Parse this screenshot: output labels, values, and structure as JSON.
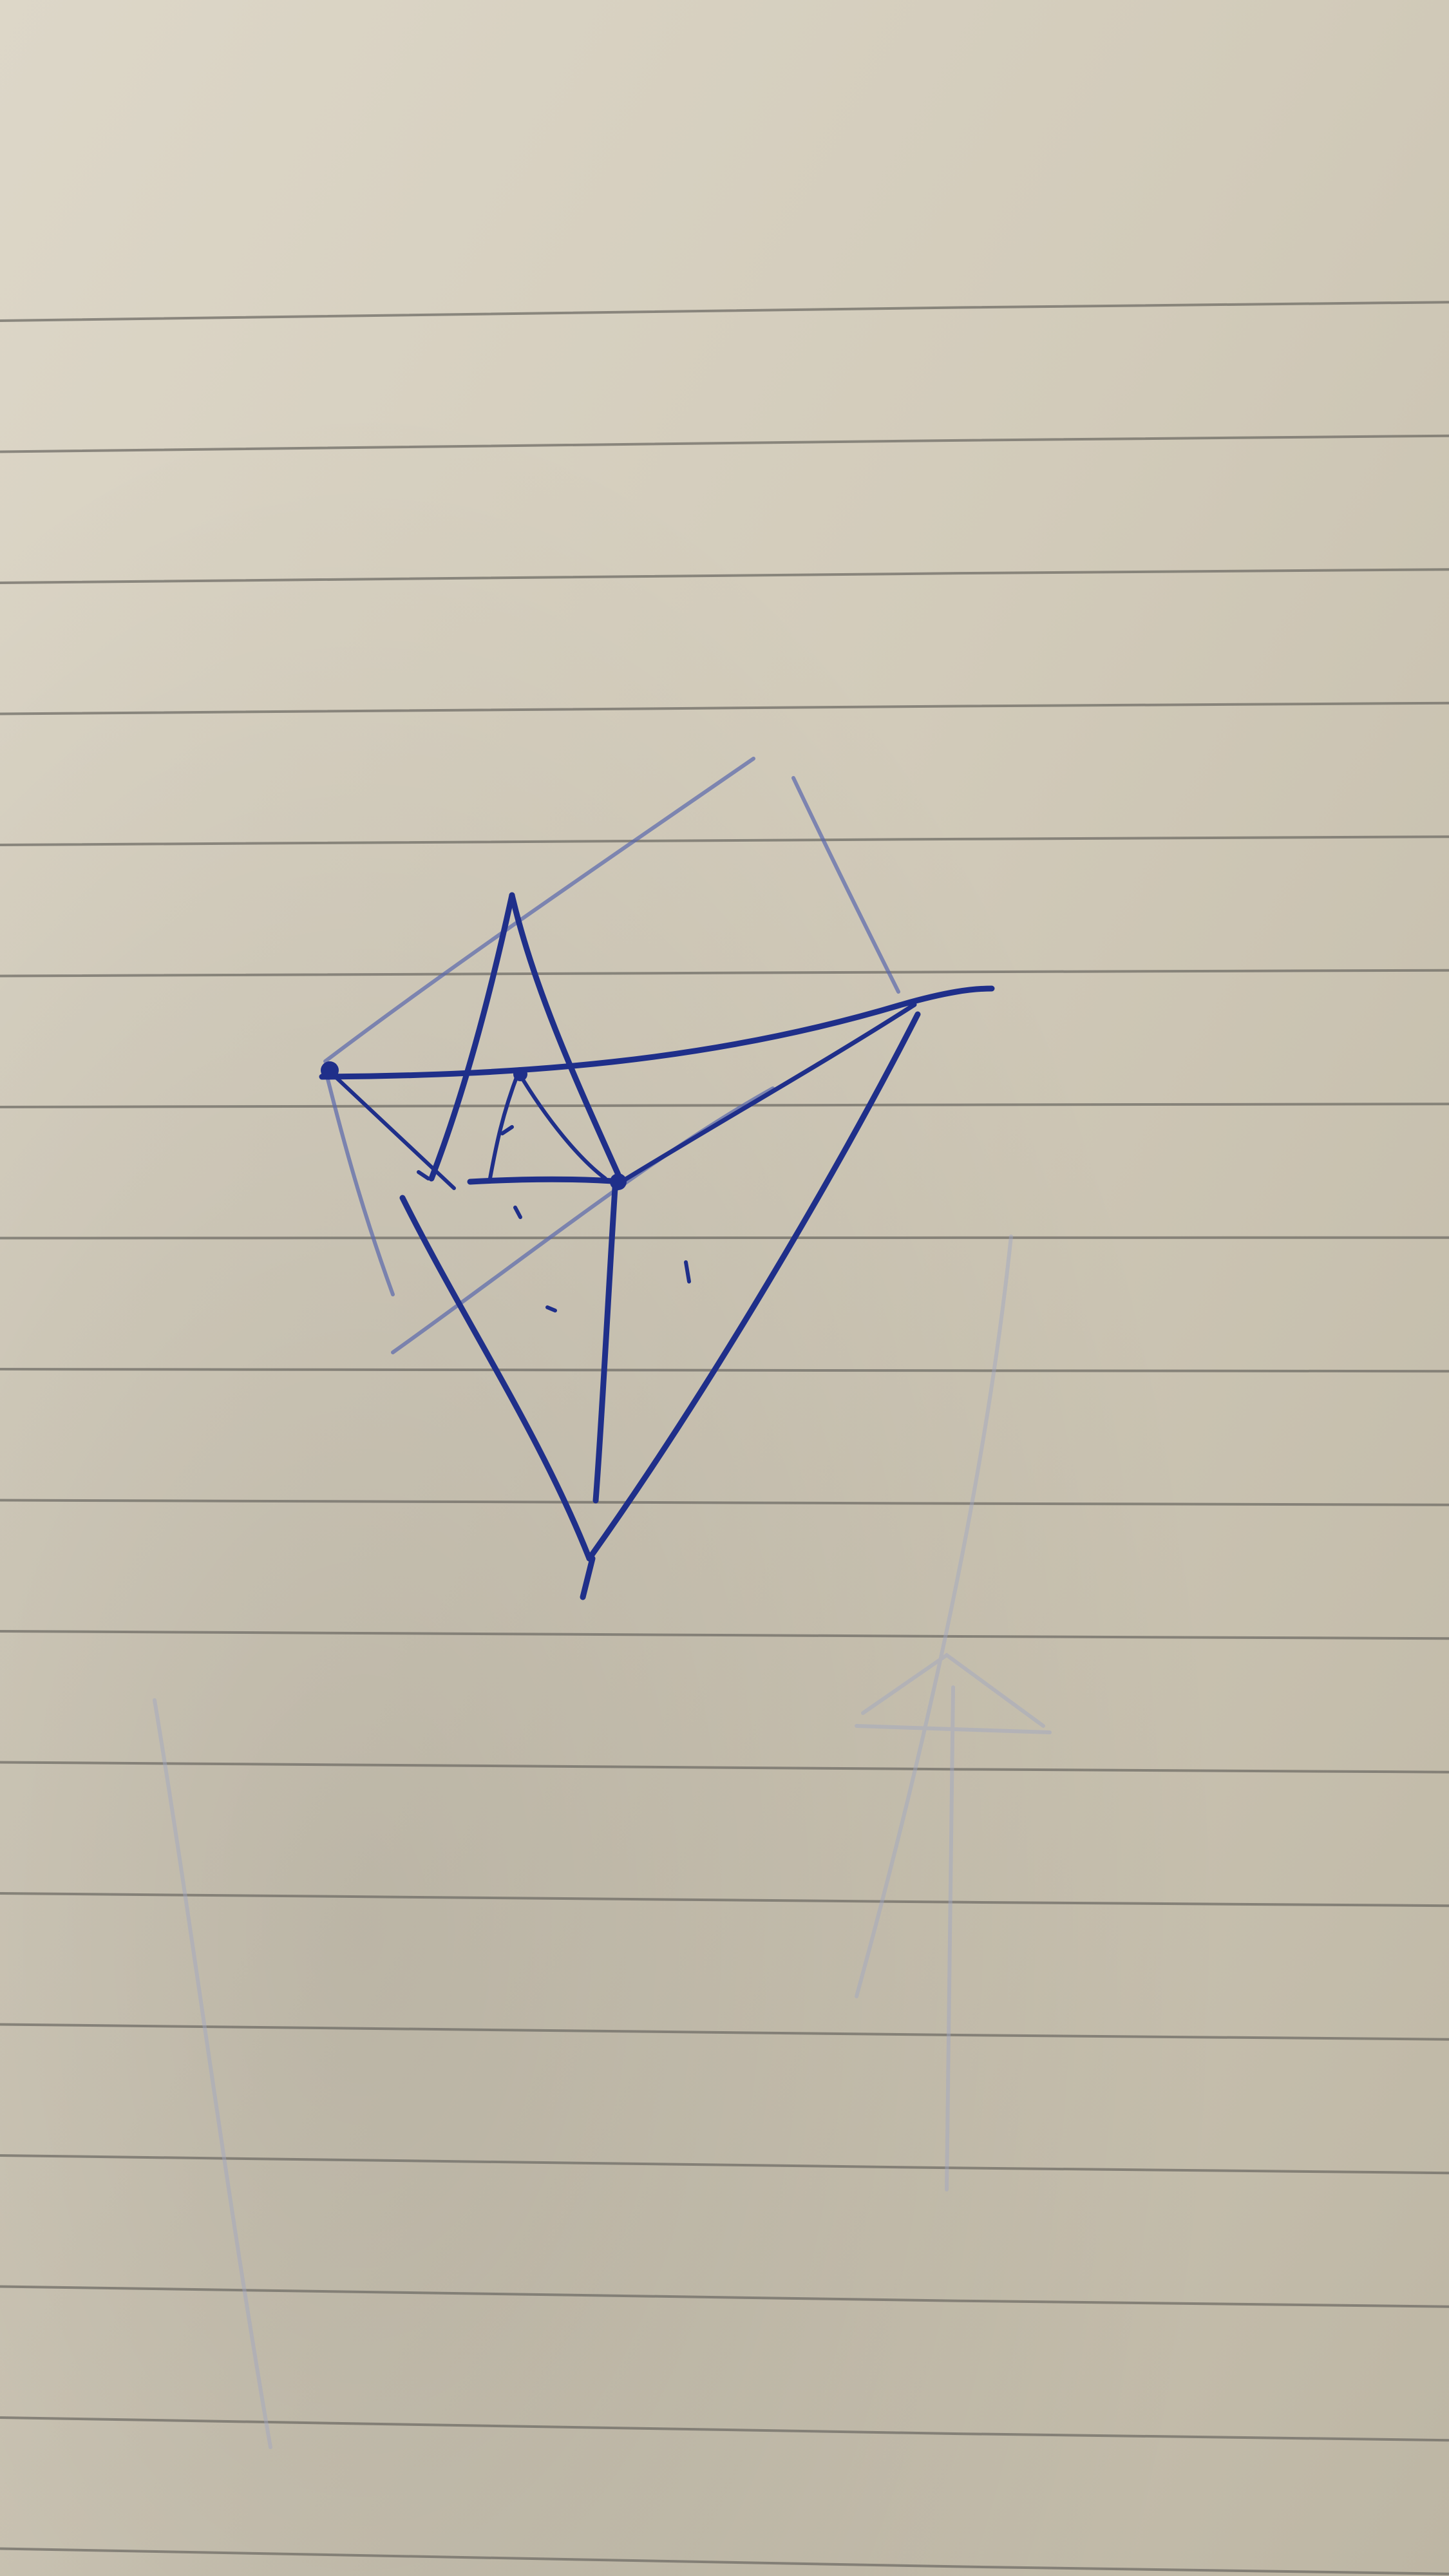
{
  "photo": {
    "subject": "notebook-page-sketch",
    "colors": {
      "paper_light": "#dcd6c6",
      "paper_mid": "#cfc8b6",
      "paper_dark": "#b9b2a0",
      "rule_line": "#6f6c66",
      "ink_dark": "#1f2f8a",
      "ink_light": "#4a5aa8",
      "pencil_faint": "#9fa6c4"
    },
    "ruled_line_count": 18
  }
}
